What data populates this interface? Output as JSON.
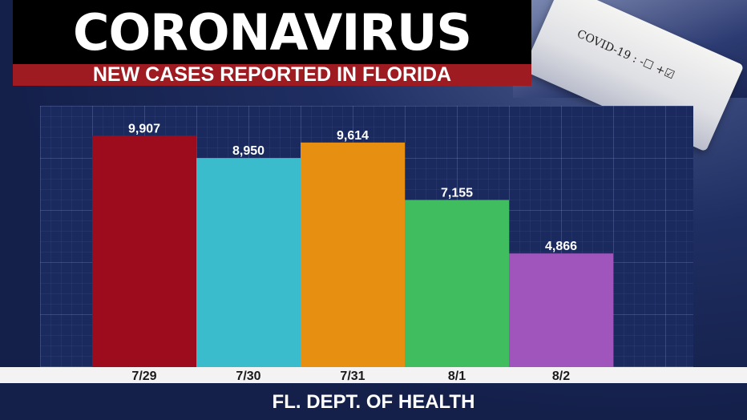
{
  "header": {
    "title": "CORONAVIRUS",
    "subtitle": "NEW CASES REPORTED IN FLORIDA",
    "tube_label": "COVID-19 : -☐ +☑"
  },
  "chart_data": {
    "type": "bar",
    "categories": [
      "7/29",
      "7/30",
      "7/31",
      "8/1",
      "8/2"
    ],
    "values": [
      9907,
      8950,
      9614,
      7155,
      4866
    ],
    "value_labels": [
      "9,907",
      "8,950",
      "9,614",
      "7,155",
      "4,866"
    ],
    "colors": [
      "#9c0c1c",
      "#3bbccc",
      "#e78f10",
      "#3fbd5f",
      "#9f55bc"
    ],
    "ylim": [
      0,
      10500
    ],
    "grid": true,
    "title": "",
    "xlabel": "",
    "ylabel": ""
  },
  "footer": {
    "source": "FL. DEPT. OF HEALTH"
  }
}
